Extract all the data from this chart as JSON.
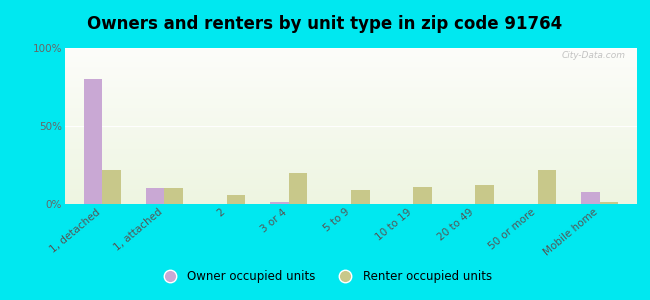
{
  "title": "Owners and renters by unit type in zip code 91764",
  "categories": [
    "1, detached",
    "1, attached",
    "2",
    "3 or 4",
    "5 to 9",
    "10 to 19",
    "20 to 49",
    "50 or more",
    "Mobile home"
  ],
  "owner_values": [
    80,
    10,
    0,
    1,
    0,
    0,
    0,
    0,
    8
  ],
  "renter_values": [
    22,
    10,
    6,
    20,
    9,
    11,
    12,
    22,
    1
  ],
  "owner_color": "#c9a8d4",
  "renter_color": "#c8c88a",
  "background_outer": "#00e8f0",
  "ylim": [
    0,
    100
  ],
  "yticks": [
    0,
    50,
    100
  ],
  "ytick_labels": [
    "0%",
    "50%",
    "100%"
  ],
  "legend_owner": "Owner occupied units",
  "legend_renter": "Renter occupied units",
  "bar_width": 0.3,
  "title_fontsize": 12,
  "tick_fontsize": 7.5,
  "legend_fontsize": 8.5
}
